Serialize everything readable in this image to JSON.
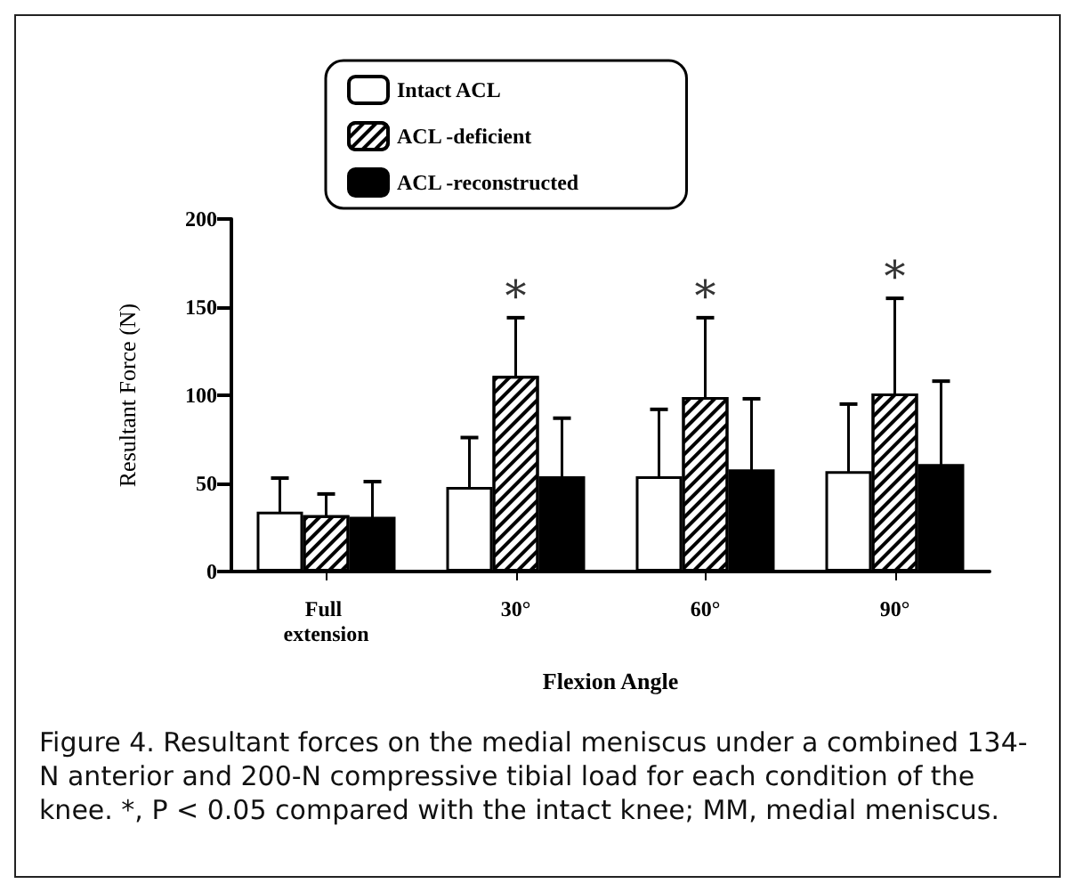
{
  "chart_data": {
    "type": "bar",
    "xlabel": "Flexion Angle",
    "ylabel": "Resultant Force (N)",
    "categories": [
      "Full extension",
      "30°",
      "60°",
      "90°"
    ],
    "series": [
      {
        "name": "Intact ACL",
        "color": "#ffffff",
        "values": [
          34,
          48,
          54,
          57
        ],
        "errors": [
          19,
          28,
          38,
          38
        ]
      },
      {
        "name": "ACL -deficient",
        "color": "#ffffff",
        "values": [
          32,
          111,
          99,
          101
        ],
        "errors": [
          12,
          33,
          45,
          54
        ]
      },
      {
        "name": "ACL -reconstructed",
        "color": "#000000",
        "values": [
          31,
          54,
          58,
          61
        ],
        "errors": [
          20,
          33,
          40,
          47
        ]
      }
    ],
    "ylim": [
      0,
      200
    ],
    "yticks": [
      0,
      50,
      100,
      150,
      200
    ],
    "grid": false,
    "legend": "top",
    "annotations": [
      {
        "text": "*",
        "x": "30°",
        "y": 144
      },
      {
        "text": "*",
        "x": "60°",
        "y": 144
      },
      {
        "text": "*",
        "x": "90°",
        "y": 155
      },
      "Figure 4. Resultant forces on the medial meniscus under a combined 134-N anterior and 200-N compressive tibial load for each condition of the knee. *, P < 0.05 compared with the intact knee; MM, medial meniscus."
    ]
  }
}
